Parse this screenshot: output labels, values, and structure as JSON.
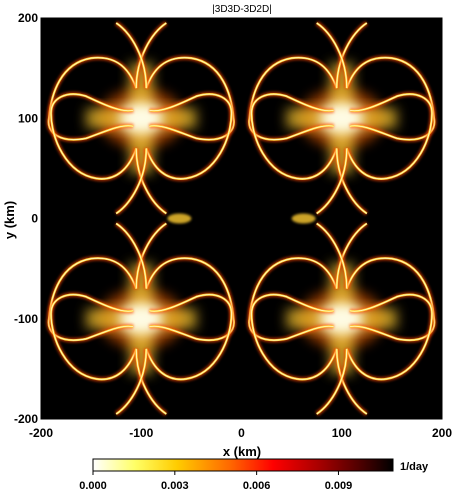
{
  "chart_data": {
    "type": "heatmap",
    "title": "|3D3D-3D2D|",
    "xlabel": "x (km)",
    "ylabel": "y (km)",
    "xlim": [
      -200,
      200
    ],
    "ylim": [
      -200,
      200
    ],
    "xticks": [
      -200,
      -100,
      0,
      100,
      200
    ],
    "yticks": [
      200,
      100,
      0,
      -100,
      -200
    ],
    "tick_labels_x": [
      "-200",
      "-100",
      "0",
      "100",
      "200"
    ],
    "tick_labels_y": [
      "200",
      "100",
      "0",
      "-100",
      "-200"
    ],
    "background_value": 0.0,
    "colorbar": {
      "unit": "1/day",
      "range": [
        0.0,
        0.011
      ],
      "ticks": [
        0.0,
        0.003,
        0.006,
        0.009
      ],
      "tick_labels": [
        "0.000",
        "0.003",
        "0.006",
        "0.009"
      ],
      "colormap": [
        "#ffffff",
        "#ffff66",
        "#ffcc00",
        "#ff6600",
        "#ff0000",
        "#aa0000",
        "#550000",
        "#000000"
      ]
    },
    "pattern": {
      "tiles": [
        [
          -100,
          100
        ],
        [
          100,
          100
        ],
        [
          -100,
          -100
        ],
        [
          100,
          -100
        ]
      ],
      "bright_core_centers": [
        [
          -100,
          100
        ],
        [
          100,
          100
        ],
        [
          -100,
          -100
        ],
        [
          100,
          -100
        ]
      ]
    }
  }
}
